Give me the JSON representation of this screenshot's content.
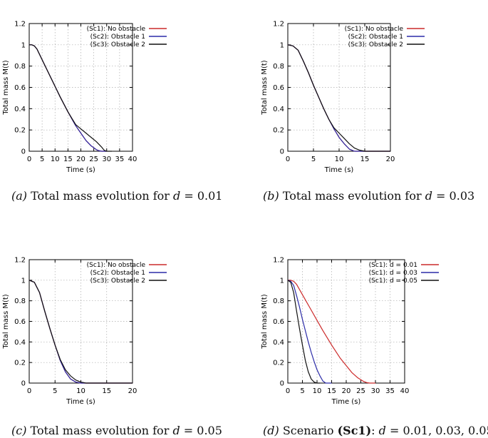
{
  "chart_data": [
    {
      "type": "line",
      "xlabel": "Time (s)",
      "ylabel": "Total mass M(t)",
      "xlim": [
        0,
        40
      ],
      "ylim": [
        0,
        1.2
      ],
      "xticks": [
        "0",
        "5",
        "10",
        "15",
        "20",
        "25",
        "30",
        "35",
        "40"
      ],
      "yticks": [
        "0",
        "0.2",
        "0.4",
        "0.6",
        "0.8",
        "1",
        "1.2"
      ],
      "grid": true,
      "legend_position": "top-right",
      "series": [
        {
          "name": "(Sc1): No obstacle",
          "color": "#cc2a2a",
          "x": [
            0,
            1,
            2,
            3,
            5,
            8,
            10,
            12,
            15,
            18,
            20,
            22,
            24,
            26,
            27,
            28,
            30
          ],
          "y": [
            1,
            1,
            0.99,
            0.96,
            0.86,
            0.71,
            0.61,
            0.51,
            0.37,
            0.24,
            0.17,
            0.1,
            0.05,
            0.015,
            0.005,
            0,
            0
          ]
        },
        {
          "name": "(Sc2): Obstacle 1",
          "color": "#2b2ba8",
          "x": [
            0,
            1,
            2,
            3,
            5,
            8,
            10,
            12,
            15,
            18,
            20,
            22,
            24,
            26,
            27,
            28,
            30
          ],
          "y": [
            1,
            1,
            0.99,
            0.96,
            0.86,
            0.71,
            0.61,
            0.51,
            0.37,
            0.24,
            0.17,
            0.1,
            0.05,
            0.015,
            0.005,
            0,
            0
          ]
        },
        {
          "name": "(Sc3): Obstacle 2",
          "color": "#111111",
          "x": [
            0,
            1,
            2,
            3,
            5,
            8,
            10,
            12,
            15,
            18,
            20,
            22,
            24,
            26,
            28,
            29,
            30,
            31,
            32
          ],
          "y": [
            1,
            1,
            0.99,
            0.96,
            0.86,
            0.71,
            0.61,
            0.51,
            0.37,
            0.25,
            0.21,
            0.17,
            0.13,
            0.09,
            0.04,
            0.01,
            0,
            0,
            0
          ]
        }
      ]
    },
    {
      "type": "line",
      "xlabel": "Time (s)",
      "ylabel": "Total mass M(t)",
      "xlim": [
        0,
        20
      ],
      "ylim": [
        0,
        1.2
      ],
      "xticks": [
        "0",
        "5",
        "10",
        "15",
        "20"
      ],
      "yticks": [
        "0",
        "0.2",
        "0.4",
        "0.6",
        "0.8",
        "1",
        "1.2"
      ],
      "grid": true,
      "legend_position": "top-right",
      "series": [
        {
          "name": "(Sc1): No obstacle",
          "color": "#cc2a2a",
          "x": [
            0,
            1,
            2,
            3,
            4,
            5,
            6,
            7,
            8,
            9,
            10,
            11,
            12,
            12.5,
            13,
            14,
            20
          ],
          "y": [
            1,
            0.99,
            0.95,
            0.85,
            0.74,
            0.62,
            0.51,
            0.4,
            0.3,
            0.21,
            0.13,
            0.07,
            0.02,
            0.01,
            0,
            0,
            0
          ]
        },
        {
          "name": "(Sc2): Obstacle 1",
          "color": "#2b2ba8",
          "x": [
            0,
            1,
            2,
            3,
            4,
            5,
            6,
            7,
            8,
            9,
            10,
            11,
            12,
            12.5,
            13,
            14,
            20
          ],
          "y": [
            1,
            0.99,
            0.95,
            0.85,
            0.74,
            0.62,
            0.51,
            0.4,
            0.3,
            0.21,
            0.13,
            0.07,
            0.02,
            0.01,
            0,
            0,
            0
          ]
        },
        {
          "name": "(Sc3): Obstacle 2",
          "color": "#111111",
          "x": [
            0,
            1,
            2,
            3,
            4,
            5,
            6,
            7,
            8,
            9,
            10,
            11,
            12,
            13,
            14,
            15,
            20
          ],
          "y": [
            1,
            0.99,
            0.95,
            0.85,
            0.74,
            0.62,
            0.51,
            0.4,
            0.3,
            0.22,
            0.17,
            0.12,
            0.07,
            0.03,
            0.01,
            0,
            0
          ]
        }
      ]
    },
    {
      "type": "line",
      "xlabel": "Time (s)",
      "ylabel": "Total mass M(t)",
      "xlim": [
        0,
        20
      ],
      "ylim": [
        0,
        1.2
      ],
      "xticks": [
        "0",
        "5",
        "10",
        "15",
        "20"
      ],
      "yticks": [
        "0",
        "0.2",
        "0.4",
        "0.6",
        "0.8",
        "1",
        "1.2"
      ],
      "grid": true,
      "legend_position": "top-right",
      "series": [
        {
          "name": "(Sc1): No obstacle",
          "color": "#cc2a2a",
          "x": [
            0,
            1,
            2,
            3,
            4,
            5,
            6,
            7,
            8,
            9,
            10,
            20
          ],
          "y": [
            1,
            0.98,
            0.88,
            0.7,
            0.53,
            0.37,
            0.22,
            0.11,
            0.04,
            0.01,
            0,
            0
          ]
        },
        {
          "name": "(Sc2): Obstacle 1",
          "color": "#2b2ba8",
          "x": [
            0,
            1,
            2,
            3,
            4,
            5,
            6,
            7,
            8,
            9,
            10,
            20
          ],
          "y": [
            1,
            0.98,
            0.88,
            0.7,
            0.53,
            0.37,
            0.22,
            0.11,
            0.04,
            0.01,
            0,
            0
          ]
        },
        {
          "name": "(Sc3): Obstacle 2",
          "color": "#111111",
          "x": [
            0,
            1,
            2,
            3,
            4,
            5,
            6,
            7,
            8,
            9,
            10,
            11,
            20
          ],
          "y": [
            1,
            0.98,
            0.88,
            0.7,
            0.53,
            0.37,
            0.23,
            0.13,
            0.07,
            0.03,
            0.01,
            0,
            0
          ]
        }
      ]
    },
    {
      "type": "line",
      "xlabel": "Time (s)",
      "ylabel": "Total mass M(t)",
      "xlim": [
        0,
        40
      ],
      "ylim": [
        0,
        1.2
      ],
      "xticks": [
        "0",
        "5",
        "10",
        "15",
        "20",
        "25",
        "30",
        "35",
        "40"
      ],
      "yticks": [
        "0",
        "0.2",
        "0.4",
        "0.6",
        "0.8",
        "1",
        "1.2"
      ],
      "grid": true,
      "legend_position": "top-right",
      "series": [
        {
          "name": "(Sc1): d = 0.01",
          "color": "#cc2a2a",
          "x": [
            0,
            1,
            2,
            3,
            5,
            8,
            10,
            12,
            15,
            18,
            20,
            22,
            24,
            26,
            27,
            28,
            30
          ],
          "y": [
            1,
            1,
            0.99,
            0.96,
            0.86,
            0.71,
            0.61,
            0.51,
            0.37,
            0.24,
            0.17,
            0.1,
            0.05,
            0.015,
            0.005,
            0,
            0
          ]
        },
        {
          "name": "(Sc1): d = 0.03",
          "color": "#2b2ba8",
          "x": [
            0,
            1,
            2,
            3,
            4,
            5,
            6,
            7,
            8,
            9,
            10,
            11,
            12,
            12.5,
            13,
            14,
            15
          ],
          "y": [
            1,
            0.99,
            0.95,
            0.85,
            0.74,
            0.62,
            0.51,
            0.4,
            0.3,
            0.21,
            0.13,
            0.07,
            0.02,
            0.01,
            0,
            0,
            0
          ]
        },
        {
          "name": "(Sc1): d = 0.05",
          "color": "#111111",
          "x": [
            0,
            1,
            2,
            3,
            4,
            5,
            6,
            7,
            8,
            9,
            10,
            11
          ],
          "y": [
            1,
            0.98,
            0.88,
            0.7,
            0.53,
            0.37,
            0.22,
            0.11,
            0.04,
            0.01,
            0,
            0
          ]
        }
      ]
    }
  ],
  "captions": {
    "a_label": "(a)",
    "a_text": "Total mass evolution for",
    "a_d": "d",
    "a_eq": " = 0.01",
    "b_label": "(b)",
    "b_text": "Total mass evolution for",
    "b_d": "d",
    "b_eq": " = 0.03",
    "c_label": "(c)",
    "c_text": "Total mass evolution for",
    "c_d": "d",
    "c_eq": " = 0.05",
    "d_label": "(d)",
    "d_text": "Scenario",
    "d_bold": "(Sc1)",
    "d_colon": ":",
    "d_d": "d",
    "d_eq": " = 0.01, 0.03, 0.05"
  }
}
